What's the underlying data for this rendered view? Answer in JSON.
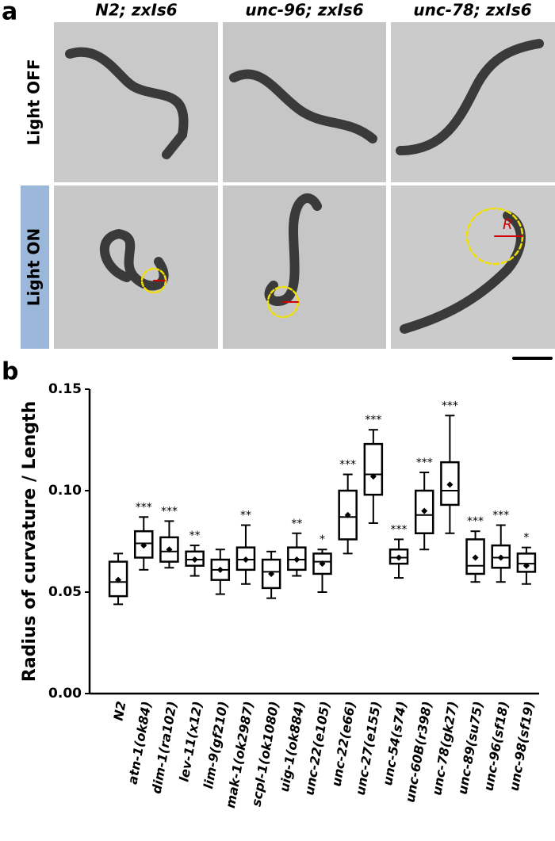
{
  "panel_labels": [
    "a",
    "b"
  ],
  "panel_a": {
    "columns": [
      "N2; zxIs6",
      "unc-96; zxIs6",
      "unc-78; zxIs6"
    ],
    "rows": [
      "Light OFF",
      "Light ON"
    ],
    "annotation": "R"
  },
  "chart_data": {
    "type": "box",
    "y_label": "Radius of curvature / Length",
    "categories": [
      "N2",
      "atn-1(ok84)",
      "dim-1(ra102)",
      "lev-11(x12)",
      "lim-9(gf210)",
      "mak-1(ok2987)",
      "scpl-1(ok1080)",
      "uig-1(ok884)",
      "unc-22(e105)",
      "unc-22(e66)",
      "unc-27(e155)",
      "unc-54(s74)",
      "unc-60B(r398)",
      "unc-78(gk27)",
      "unc-89(su75)",
      "unc-96(sf18)",
      "unc-98(sf19)"
    ],
    "min": [
      0.044,
      0.061,
      0.062,
      0.058,
      0.049,
      0.054,
      0.047,
      0.058,
      0.05,
      0.069,
      0.084,
      0.057,
      0.071,
      0.079,
      0.055,
      0.055,
      0.054
    ],
    "q1": [
      0.048,
      0.067,
      0.065,
      0.063,
      0.056,
      0.061,
      0.052,
      0.061,
      0.059,
      0.076,
      0.098,
      0.064,
      0.079,
      0.093,
      0.059,
      0.062,
      0.06
    ],
    "median": [
      0.055,
      0.074,
      0.07,
      0.066,
      0.061,
      0.066,
      0.06,
      0.066,
      0.065,
      0.087,
      0.108,
      0.067,
      0.088,
      0.1,
      0.063,
      0.067,
      0.064
    ],
    "q3": [
      0.065,
      0.08,
      0.077,
      0.07,
      0.066,
      0.072,
      0.066,
      0.072,
      0.069,
      0.1,
      0.123,
      0.071,
      0.1,
      0.114,
      0.076,
      0.073,
      0.069
    ],
    "max": [
      0.069,
      0.087,
      0.085,
      0.073,
      0.071,
      0.083,
      0.07,
      0.079,
      0.071,
      0.108,
      0.13,
      0.076,
      0.109,
      0.137,
      0.08,
      0.083,
      0.072
    ],
    "mean": [
      0.056,
      0.073,
      0.071,
      0.066,
      0.061,
      0.066,
      0.059,
      0.066,
      0.064,
      0.088,
      0.107,
      0.067,
      0.09,
      0.103,
      0.067,
      0.067,
      0.063
    ],
    "significance": [
      null,
      "***",
      "***",
      "**",
      null,
      "**",
      null,
      "**",
      "*",
      "***",
      "***",
      "***",
      "***",
      "***",
      "***",
      "***",
      "*"
    ],
    "color": "#000000",
    "ylim": [
      0,
      0.15
    ],
    "yticks": [
      {
        "value": 0,
        "label": "0.00"
      },
      {
        "value": 0.05,
        "label": "0.05"
      },
      {
        "value": 0.1,
        "label": "0.10"
      },
      {
        "value": 0.15,
        "label": "0.15"
      }
    ]
  }
}
